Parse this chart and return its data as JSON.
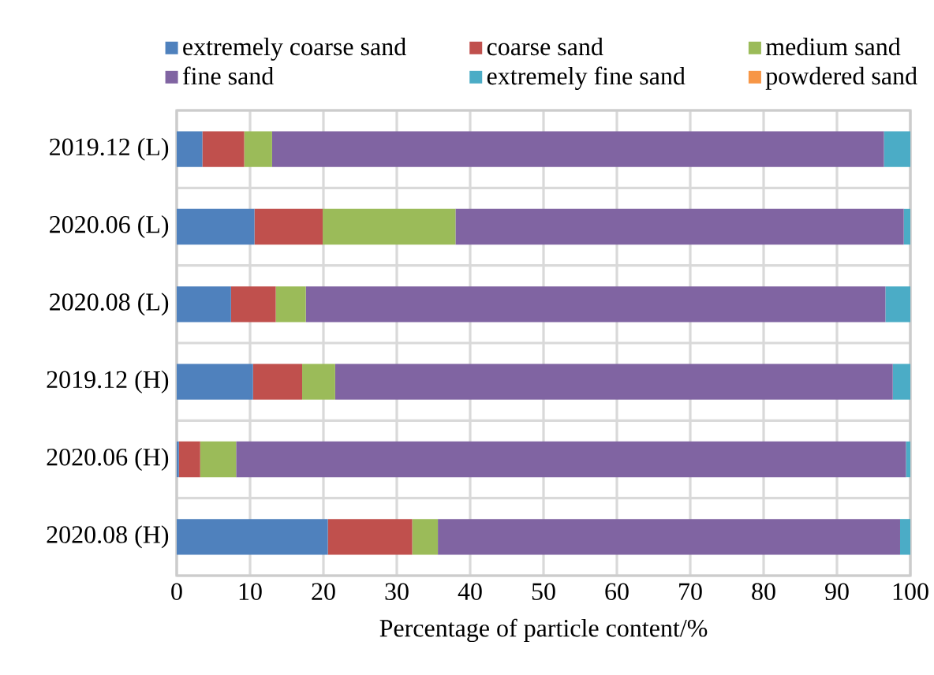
{
  "chart_data": {
    "type": "bar",
    "orientation": "horizontal",
    "stacked": true,
    "xlabel": "Percentage of particle content/%",
    "categories": [
      "2019.12 (L)",
      "2020.06 (L)",
      "2020.08 (L)",
      "2019.12 (H)",
      "2020.06 (H)",
      "2020.08 (H)"
    ],
    "series": [
      {
        "name": "extremely coarse sand",
        "color": "#4f81bd",
        "values": [
          3.5,
          10.6,
          7.4,
          10.4,
          0.3,
          20.6
        ]
      },
      {
        "name": "coarse sand",
        "color": "#c0504d",
        "values": [
          5.7,
          9.3,
          6.1,
          6.7,
          2.9,
          11.5
        ]
      },
      {
        "name": "medium sand",
        "color": "#9bbb59",
        "values": [
          3.8,
          18.1,
          4.1,
          4.5,
          4.9,
          3.5
        ]
      },
      {
        "name": "fine sand",
        "color": "#8064a2",
        "values": [
          83.4,
          61.1,
          79.0,
          76.0,
          91.3,
          63.0
        ]
      },
      {
        "name": "extremely fine sand",
        "color": "#4bacc6",
        "values": [
          3.6,
          0.9,
          3.4,
          2.4,
          0.6,
          1.4
        ]
      },
      {
        "name": "powdered sand",
        "color": "#f79646",
        "values": [
          0,
          0,
          0,
          0,
          0,
          0
        ]
      }
    ],
    "xlim": [
      0,
      100
    ],
    "xticks": [
      0,
      10,
      20,
      30,
      40,
      50,
      60,
      70,
      80,
      90,
      100
    ],
    "grid": true,
    "legend": "top"
  }
}
